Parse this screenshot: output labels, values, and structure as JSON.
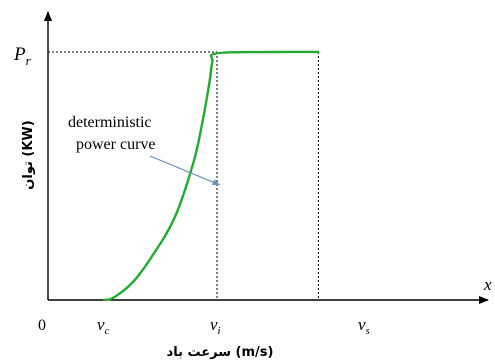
{
  "chart_data": {
    "type": "line",
    "xlabel": "سرعت باد (m/s)",
    "ylabel": "توان (KW)",
    "axis_letter_x": "x",
    "origin_label": "0",
    "y_tick_label": {
      "main": "P",
      "sub": "r"
    },
    "x_tick_labels": [
      {
        "key": "vc",
        "main": "v",
        "sub": "c"
      },
      {
        "key": "vi",
        "main": "v",
        "sub": "i"
      },
      {
        "key": "vs",
        "main": "v",
        "sub": "s"
      }
    ],
    "xlim": [
      0,
      3.6
    ],
    "ylim": [
      0,
      1.1
    ],
    "series": [
      {
        "name": "deterministic power curve",
        "color": "#22aa33",
        "x": [
          0.6,
          0.7,
          0.9,
          1.1,
          1.35,
          1.55,
          1.65,
          1.72,
          1.75,
          1.8,
          2.4,
          2.88
        ],
        "y": [
          0.0,
          0.01,
          0.07,
          0.17,
          0.33,
          0.55,
          0.72,
          0.87,
          0.95,
          0.985,
          0.99,
          0.99
        ]
      }
    ],
    "reference_lines": [
      {
        "kind": "vertical",
        "at_x": 1.8,
        "to_y": 0.99
      },
      {
        "kind": "vertical",
        "at_x": 2.88,
        "to_y": 0.99
      },
      {
        "kind": "horizontal",
        "at_y": 0.99,
        "from_x": 0,
        "to_x": 1.8
      }
    ],
    "annotation": {
      "lines": [
        "deterministic",
        "power curve"
      ],
      "points_to": {
        "x": 1.22,
        "y": 0.42
      }
    },
    "grid": false
  }
}
